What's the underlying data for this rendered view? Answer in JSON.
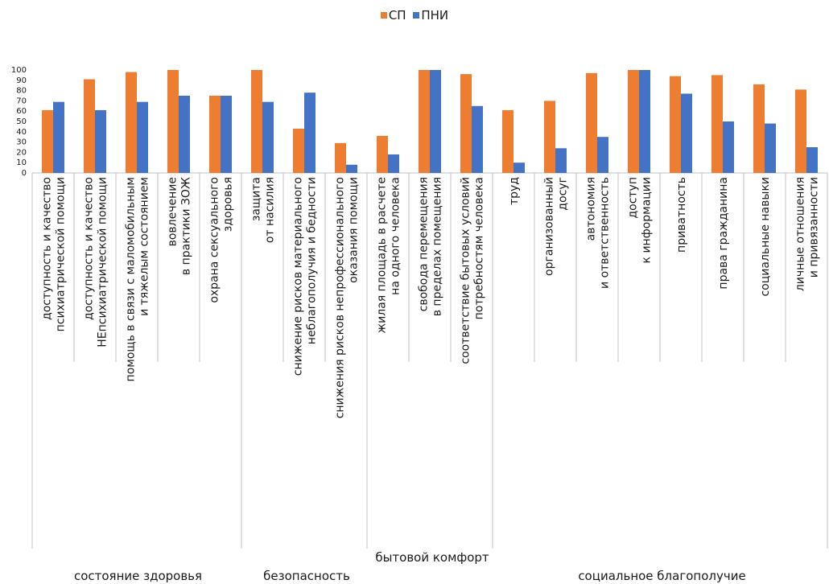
{
  "colors": {
    "series_sp": "#ED7D31",
    "series_pni": "#4472C4",
    "axis": "#bfbfbf"
  },
  "chart_data": {
    "type": "bar",
    "title": "",
    "legend_position": "top-center",
    "ylim": [
      0,
      100
    ],
    "yticks": [
      0,
      10,
      20,
      30,
      40,
      50,
      60,
      70,
      80,
      90,
      100
    ],
    "grid": false,
    "categories": [
      [
        "доступность и качество",
        "психиатрической помощи"
      ],
      [
        "доступность и качество",
        "НЕпсихиатрической помощи"
      ],
      [
        "помощь в связи с маломобильным",
        "и тяжелым состоянием"
      ],
      [
        "вовлечение",
        "в практики ЗОЖ"
      ],
      [
        "охрана сексуального",
        "здоровья"
      ],
      [
        "защита",
        "от насилия"
      ],
      [
        "снижение рисков материального",
        "неблагополучия и бедности"
      ],
      [
        "снижения рисков непрофессионального",
        "оказания помощи"
      ],
      [
        "жилая площадь в расчете",
        "на одного человека"
      ],
      [
        "свобода перемещения",
        "в пределах помещения"
      ],
      [
        "соответствие бытовых условий",
        "потребностям человека"
      ],
      [
        "труд"
      ],
      [
        "организованный",
        "досуг"
      ],
      [
        "автономия",
        "и ответственность"
      ],
      [
        "доступ",
        "к информации"
      ],
      [
        "приватность"
      ],
      [
        "права гражданина"
      ],
      [
        "социальные навыки"
      ],
      [
        "личные отношения",
        "и привязанности"
      ]
    ],
    "series": [
      {
        "name": "СП",
        "values": [
          61,
          91,
          98,
          100,
          75,
          100,
          43,
          29,
          36,
          100,
          96,
          61,
          70,
          97,
          100,
          94,
          95,
          86,
          81
        ]
      },
      {
        "name": "ПНИ",
        "values": [
          69,
          61,
          69,
          75,
          75,
          69,
          78,
          8,
          18,
          100,
          65,
          10,
          24,
          35,
          100,
          77,
          50,
          48,
          25
        ]
      }
    ],
    "groups": [
      {
        "label": "состояние здоровья",
        "start": 0,
        "end": 4
      },
      {
        "label": "безопасность",
        "start": 5,
        "end": 7
      },
      {
        "label": "бытовой\nкомфорт",
        "start": 8,
        "end": 10
      },
      {
        "label": "социальное благополучие",
        "start": 11,
        "end": 18
      }
    ]
  }
}
